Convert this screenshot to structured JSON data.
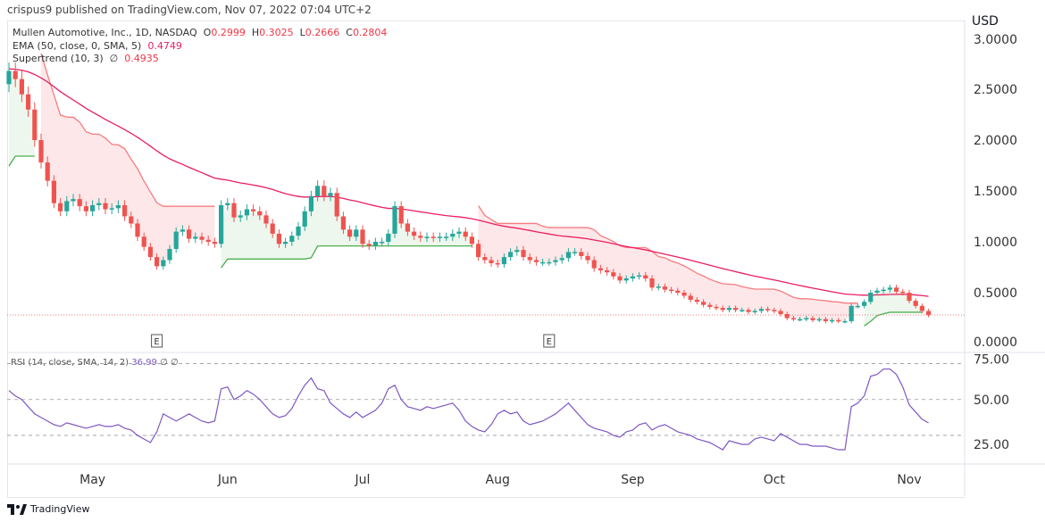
{
  "published": "crispus9 published on TradingView.com, Nov 07, 2022 07:04 UTC+2",
  "footer_logo": "TradingView",
  "legend": {
    "symbol": "Mullen Automotive, Inc., 1D, NASDAQ",
    "o_label": "O",
    "o": "0.2999",
    "h_label": "H",
    "h": "0.3025",
    "l_label": "L",
    "l": "0.2666",
    "c_label": "C",
    "c": "0.2804",
    "ema_label": "EMA (50, close, 0, SMA, 5)",
    "ema_value": "0.4749",
    "st_label": "Supertrend (10, 3)",
    "st_icon": "∅",
    "st_value": "0.4935",
    "rsi_label": "RSI (14, close, SMA, 14, 2)",
    "rsi_value": "36.99",
    "rsi_extra": "∅ ∅"
  },
  "colors": {
    "up": "#26a69a",
    "down": "#ef5350",
    "ema": "#e91e63",
    "st_down": "#f77c80",
    "st_up": "#4caf50",
    "rsi": "#7e57c2"
  },
  "chart_data": [
    {
      "type": "candlestick",
      "currency": "USD",
      "ylim": [
        0,
        3
      ],
      "yticks": [
        "3.0000",
        "2.5000",
        "2.0000",
        "1.5000",
        "1.0000",
        "0.5000",
        "0.0000"
      ],
      "xticks": [
        "May",
        "Jun",
        "Jul",
        "Aug",
        "Sep",
        "Oct",
        "Nov"
      ],
      "earnings_markers": [
        "E",
        "E"
      ],
      "last_price": 0.2804,
      "close": [
        2.68,
        2.6,
        2.45,
        2.3,
        2.0,
        1.78,
        1.6,
        1.38,
        1.3,
        1.4,
        1.42,
        1.35,
        1.3,
        1.36,
        1.38,
        1.32,
        1.33,
        1.36,
        1.25,
        1.18,
        1.05,
        0.95,
        0.85,
        0.76,
        0.82,
        0.93,
        1.1,
        1.12,
        1.03,
        1.05,
        1.02,
        1.0,
        0.98,
        1.36,
        1.38,
        1.24,
        1.26,
        1.32,
        1.3,
        1.26,
        1.18,
        1.08,
        0.98,
        1.0,
        1.06,
        1.15,
        1.3,
        1.45,
        1.55,
        1.45,
        1.48,
        1.25,
        1.12,
        1.05,
        1.12,
        0.98,
        0.96,
        1.0,
        1.0,
        1.08,
        1.35,
        1.18,
        1.1,
        1.06,
        1.04,
        1.05,
        1.04,
        1.05,
        1.05,
        1.08,
        1.1,
        1.05,
        0.98,
        0.85,
        0.82,
        0.79,
        0.78,
        0.85,
        0.9,
        0.92,
        0.85,
        0.82,
        0.8,
        0.8,
        0.8,
        0.82,
        0.84,
        0.9,
        0.9,
        0.86,
        0.82,
        0.74,
        0.72,
        0.7,
        0.66,
        0.62,
        0.64,
        0.66,
        0.67,
        0.64,
        0.55,
        0.56,
        0.53,
        0.52,
        0.5,
        0.47,
        0.43,
        0.41,
        0.38,
        0.36,
        0.35,
        0.33,
        0.35,
        0.33,
        0.33,
        0.31,
        0.32,
        0.34,
        0.33,
        0.32,
        0.29,
        0.25,
        0.24,
        0.24,
        0.25,
        0.23,
        0.24,
        0.22,
        0.23,
        0.22,
        0.22,
        0.37,
        0.37,
        0.41,
        0.5,
        0.52,
        0.53,
        0.55,
        0.51,
        0.5,
        0.42,
        0.37,
        0.32,
        0.28
      ]
    },
    {
      "type": "line",
      "ylim": [
        15,
        80
      ],
      "yticks": [
        "75.00",
        "50.00",
        "25.00"
      ],
      "bands": [
        70,
        50,
        30
      ],
      "values": [
        55,
        52,
        50,
        46,
        42,
        40,
        38,
        36,
        35,
        37,
        36,
        35,
        34,
        35,
        36,
        35,
        35,
        36,
        34,
        33,
        30,
        28,
        26,
        32,
        42,
        40,
        38,
        40,
        42,
        40,
        38,
        37,
        38,
        56,
        57,
        50,
        52,
        55,
        53,
        50,
        46,
        42,
        40,
        41,
        45,
        52,
        58,
        62,
        56,
        55,
        48,
        45,
        42,
        40,
        43,
        40,
        42,
        44,
        48,
        56,
        58,
        50,
        46,
        45,
        44,
        46,
        45,
        46,
        47,
        48,
        44,
        38,
        35,
        33,
        32,
        36,
        42,
        44,
        42,
        43,
        38,
        36,
        37,
        38,
        40,
        42,
        45,
        48,
        44,
        40,
        36,
        34,
        33,
        32,
        30,
        29,
        32,
        33,
        36,
        37,
        33,
        35,
        36,
        34,
        32,
        31,
        30,
        28,
        27,
        26,
        24,
        22,
        27,
        26,
        25,
        25,
        28,
        29,
        28,
        27,
        31,
        29,
        27,
        25,
        25,
        24,
        24,
        24,
        23,
        22,
        22,
        46,
        48,
        52,
        63,
        64,
        67,
        67,
        64,
        57,
        47,
        43,
        39,
        37
      ]
    }
  ]
}
